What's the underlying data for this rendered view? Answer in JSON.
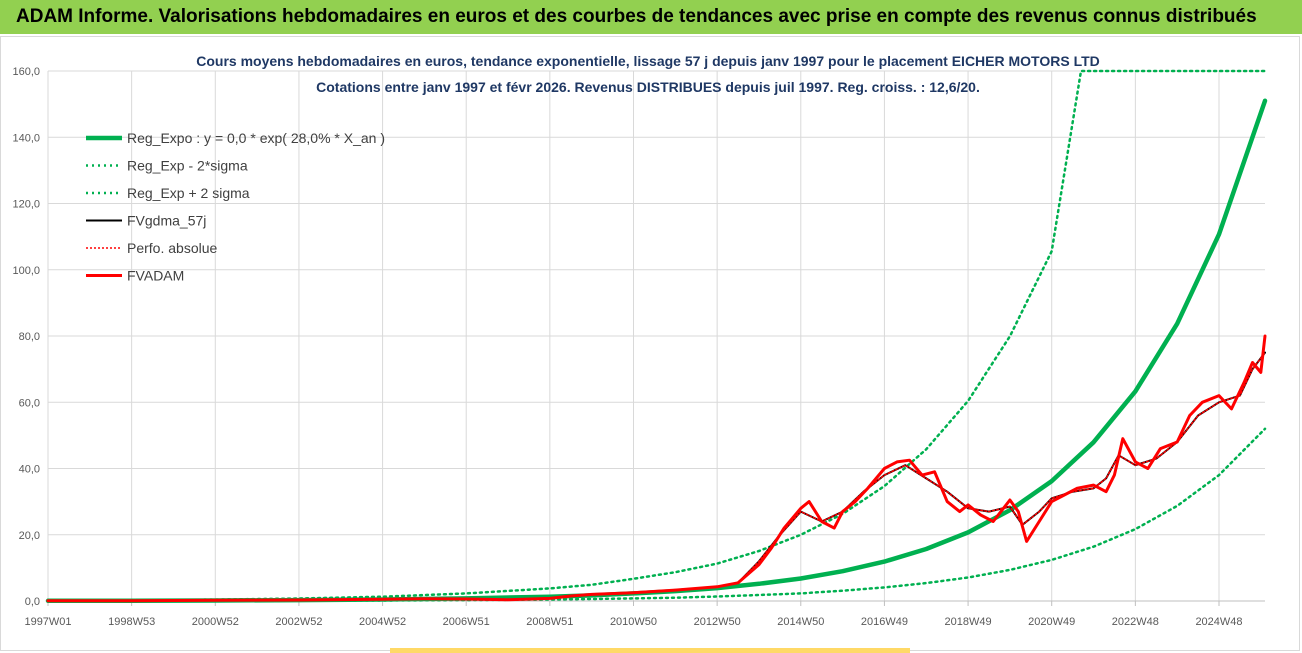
{
  "banner": {
    "title": "ADAM Informe. Valorisations hebdomadaires en euros et des courbes de tendances avec prise en compte des revenus connus distribués",
    "color": "#92d050"
  },
  "chart_data": {
    "type": "line",
    "title_lines": [
      "Cours moyens hebdomadaires en euros, tendance exponentielle, lissage 57 j depuis janv 1997 pour le placement EICHER MOTORS LTD",
      "Cotations entre janv 1997 et févr 2026. Revenus DISTRIBUES depuis juil 1997. Reg. croiss. : 12,6/20."
    ],
    "xlabel": "",
    "ylabel": "",
    "ylim": [
      0,
      160
    ],
    "xlim": [
      1997.0,
      2026.1
    ],
    "y_ticks": [
      "0,0",
      "20,0",
      "40,0",
      "60,0",
      "80,0",
      "100,0",
      "120,0",
      "140,0",
      "160,0"
    ],
    "x_ticks": [
      {
        "label": "1997W01",
        "t": 1997.0
      },
      {
        "label": "1998W53",
        "t": 1999.0
      },
      {
        "label": "2000W52",
        "t": 2001.0
      },
      {
        "label": "2002W52",
        "t": 2003.0
      },
      {
        "label": "2004W52",
        "t": 2005.0
      },
      {
        "label": "2006W51",
        "t": 2007.0
      },
      {
        "label": "2008W51",
        "t": 2009.0
      },
      {
        "label": "2010W50",
        "t": 2011.0
      },
      {
        "label": "2012W50",
        "t": 2013.0
      },
      {
        "label": "2014W50",
        "t": 2015.0
      },
      {
        "label": "2016W49",
        "t": 2017.0
      },
      {
        "label": "2018W49",
        "t": 2019.0
      },
      {
        "label": "2020W49",
        "t": 2021.0
      },
      {
        "label": "2022W48",
        "t": 2023.0
      },
      {
        "label": "2024W48",
        "t": 2025.0
      }
    ],
    "grid": true,
    "legend_position": "top-left",
    "series": [
      {
        "name": "Reg_Expo : y = 0,0 * exp( 28,0% *  X_an )",
        "color": "#00b050",
        "style": "solid-thick",
        "x": [
          1997,
          1999,
          2001,
          2003,
          2005,
          2007,
          2009,
          2010,
          2011,
          2012,
          2013,
          2014,
          2015,
          2016,
          2017,
          2018,
          2019,
          2020,
          2021,
          2022,
          2023,
          2024,
          2025,
          2026.1
        ],
        "y": [
          0.05,
          0.09,
          0.15,
          0.26,
          0.45,
          0.78,
          1.3,
          1.7,
          2.3,
          3.0,
          3.9,
          5.2,
          6.8,
          9.0,
          11.9,
          15.7,
          20.7,
          27.4,
          36.2,
          47.9,
          63.3,
          83.7,
          110.7,
          151.0
        ]
      },
      {
        "name": "Reg_Exp - 2*sigma",
        "color": "#00b050",
        "style": "dotted",
        "x": [
          1997,
          1999,
          2001,
          2003,
          2005,
          2007,
          2009,
          2010,
          2011,
          2012,
          2013,
          2014,
          2015,
          2016,
          2017,
          2018,
          2019,
          2020,
          2021,
          2022,
          2023,
          2024,
          2025,
          2026.1
        ],
        "y": [
          0.02,
          0.03,
          0.05,
          0.09,
          0.15,
          0.27,
          0.45,
          0.6,
          0.8,
          1.0,
          1.35,
          1.8,
          2.3,
          3.1,
          4.1,
          5.4,
          7.1,
          9.4,
          12.4,
          16.4,
          21.7,
          28.7,
          38.0,
          52.0
        ]
      },
      {
        "name": "Reg_Exp + 2 sigma",
        "color": "#00b050",
        "style": "dotted",
        "x": [
          1997,
          1999,
          2001,
          2003,
          2005,
          2007,
          2009,
          2010,
          2011,
          2012,
          2013,
          2014,
          2015,
          2016,
          2017,
          2018,
          2019,
          2020,
          2021,
          2021.7,
          2026.1
        ],
        "y": [
          0.14,
          0.24,
          0.42,
          0.74,
          1.3,
          2.3,
          3.8,
          4.9,
          6.7,
          8.7,
          11.3,
          15.1,
          20.0,
          26.3,
          34.7,
          45.8,
          60.4,
          79.9,
          105.6,
          160.0,
          160.0
        ]
      },
      {
        "name": "FVgdma_57j",
        "color": "#000000",
        "style": "solid",
        "x": [
          1997,
          1999,
          2001,
          2003,
          2005,
          2006,
          2007,
          2008,
          2009,
          2009.5,
          2010,
          2011,
          2012,
          2013,
          2013.5,
          2014,
          2014.5,
          2015,
          2015.5,
          2016,
          2016.5,
          2017,
          2017.5,
          2018,
          2018.5,
          2019,
          2019.5,
          2020,
          2020.3,
          2020.7,
          2021,
          2021.5,
          2022,
          2022.3,
          2022.6,
          2023,
          2023.5,
          2024,
          2024.5,
          2025,
          2025.5,
          2025.8,
          2026.1
        ],
        "y": [
          0.1,
          0.1,
          0.2,
          0.3,
          0.5,
          0.7,
          0.6,
          0.4,
          0.8,
          1.5,
          2.0,
          2.5,
          3.3,
          4.3,
          5.5,
          12.0,
          20.0,
          27.0,
          24.0,
          27.0,
          33.0,
          38.0,
          41.0,
          37.0,
          33.0,
          28.0,
          27.0,
          28.5,
          23.0,
          27.0,
          31.0,
          33.0,
          34.0,
          37.0,
          44.0,
          41.0,
          43.0,
          48.0,
          56.0,
          60.0,
          62.0,
          70.0,
          75.0
        ]
      },
      {
        "name": "Perfo. absolue",
        "color": "#ff0000",
        "style": "dotted",
        "x": [
          1997,
          1999,
          2001,
          2003,
          2005,
          2006,
          2007,
          2008,
          2009,
          2009.5,
          2010,
          2011,
          2012,
          2013,
          2013.5,
          2014,
          2014.5,
          2015,
          2015.5,
          2016,
          2016.5,
          2017,
          2017.5,
          2018,
          2018.5,
          2019,
          2019.5,
          2020,
          2020.3,
          2020.7,
          2021,
          2021.5,
          2022,
          2022.3,
          2022.6,
          2023,
          2023.5,
          2024,
          2024.5,
          2025,
          2025.5,
          2025.8,
          2026.1
        ],
        "y": [
          0.1,
          0.1,
          0.2,
          0.3,
          0.5,
          0.7,
          0.6,
          0.4,
          0.8,
          1.5,
          2.0,
          2.5,
          3.3,
          4.3,
          5.5,
          12.0,
          20.0,
          27.0,
          24.0,
          27.0,
          33.0,
          38.0,
          41.0,
          37.0,
          33.0,
          28.0,
          27.0,
          28.5,
          23.0,
          27.0,
          31.0,
          33.0,
          34.0,
          37.0,
          44.0,
          41.0,
          43.0,
          48.0,
          56.0,
          60.0,
          62.0,
          70.0,
          75.0
        ]
      },
      {
        "name": "FVADAM",
        "color": "#ff0000",
        "style": "solid-thick",
        "x": [
          1997,
          1999,
          2001,
          2003,
          2005,
          2006,
          2007,
          2008,
          2009,
          2009.5,
          2010,
          2011,
          2012,
          2013,
          2013.5,
          2014,
          2014.3,
          2014.6,
          2015,
          2015.2,
          2015.5,
          2015.8,
          2016,
          2016.3,
          2016.6,
          2017,
          2017.3,
          2017.6,
          2017.9,
          2018.2,
          2018.5,
          2018.8,
          2019,
          2019.3,
          2019.6,
          2020,
          2020.2,
          2020.4,
          2020.7,
          2021,
          2021.3,
          2021.6,
          2022,
          2022.3,
          2022.5,
          2022.7,
          2023,
          2023.3,
          2023.6,
          2024,
          2024.3,
          2024.6,
          2025,
          2025.3,
          2025.6,
          2025.8,
          2026.0,
          2026.1
        ],
        "y": [
          0.1,
          0.1,
          0.2,
          0.3,
          0.5,
          0.7,
          0.6,
          0.4,
          0.8,
          1.5,
          2.0,
          2.5,
          3.3,
          4.3,
          5.5,
          11.0,
          16.0,
          22.0,
          28.0,
          30.0,
          24.0,
          22.0,
          27.0,
          30.0,
          34.0,
          40.0,
          42.0,
          42.5,
          38.0,
          39.0,
          30.0,
          27.0,
          29.0,
          26.0,
          24.0,
          30.5,
          27.0,
          18.0,
          24.0,
          30.0,
          32.0,
          34.0,
          35.0,
          33.0,
          38.0,
          49.0,
          42.0,
          40.0,
          46.0,
          48.0,
          56.0,
          60.0,
          62.0,
          58.0,
          66.0,
          72.0,
          69.0,
          80.0
        ]
      }
    ]
  }
}
